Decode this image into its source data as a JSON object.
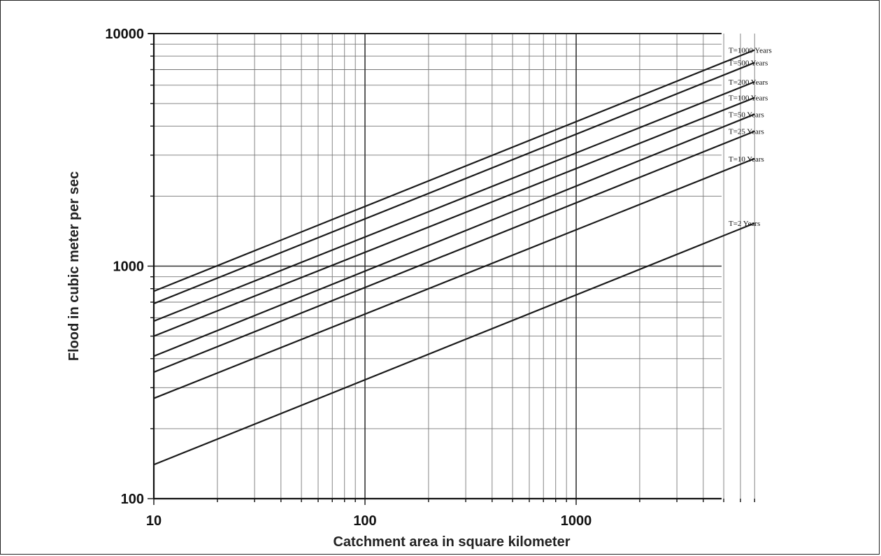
{
  "chart_data": {
    "type": "line",
    "title": "",
    "xlabel": "Catchment area in square kilometer",
    "ylabel": "Flood in cubic meter per sec",
    "x_scale": "log",
    "y_scale": "log",
    "xlim": [
      10,
      7000
    ],
    "ylim": [
      100,
      10000
    ],
    "x_ticks": [
      10,
      100,
      1000
    ],
    "x_tick_labels": [
      "10",
      "100",
      "1000"
    ],
    "y_ticks": [
      100,
      1000,
      10000
    ],
    "y_tick_labels": [
      "100",
      "1000",
      "10000"
    ],
    "grid": true,
    "legend": "labels at right end of each line",
    "series": [
      {
        "name": "T=1000 Years",
        "x": [
          10,
          7000
        ],
        "y": [
          780,
          8500
        ]
      },
      {
        "name": "T=500 Years",
        "x": [
          10,
          7000
        ],
        "y": [
          690,
          7500
        ]
      },
      {
        "name": "T=200 Years",
        "x": [
          10,
          7000
        ],
        "y": [
          580,
          6200
        ]
      },
      {
        "name": "T=100 Years",
        "x": [
          10,
          7000
        ],
        "y": [
          500,
          5300
        ]
      },
      {
        "name": "T=50 Years",
        "x": [
          10,
          7000
        ],
        "y": [
          410,
          4500
        ]
      },
      {
        "name": "T=25 Years",
        "x": [
          10,
          7000
        ],
        "y": [
          350,
          3800
        ]
      },
      {
        "name": "T=10 Years",
        "x": [
          10,
          7000
        ],
        "y": [
          270,
          2900
        ]
      },
      {
        "name": "T=2 Years",
        "x": [
          10,
          7000
        ],
        "y": [
          140,
          1530
        ]
      }
    ]
  }
}
